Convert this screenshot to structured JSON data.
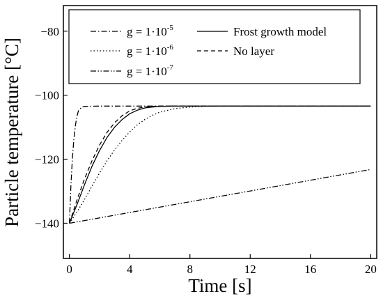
{
  "chart_data": {
    "type": "line",
    "xlabel": "Time [s]",
    "ylabel": "Particle temperature [°C]",
    "xlim": [
      -0.4,
      20.4
    ],
    "ylim": [
      -151,
      -72
    ],
    "xticks": [
      0,
      4,
      8,
      12,
      16,
      20
    ],
    "yticks": [
      -140,
      -120,
      -100,
      -80
    ],
    "grid": false,
    "legend_position": "top-left (boxed)",
    "series": [
      {
        "name": "g = 1·10",
        "name_exponent": "-5",
        "style": "dash-dot",
        "x": [
          0,
          0.1,
          0.2,
          0.3,
          0.4,
          0.5,
          0.6,
          0.8,
          1.0,
          2.0,
          20
        ],
        "y": [
          -140,
          -128.4,
          -119.6,
          -113.7,
          -109.4,
          -106.6,
          -104.9,
          -103.8,
          -103.5,
          -103.4,
          -103.4
        ]
      },
      {
        "name": "g = 1·10",
        "name_exponent": "-6",
        "style": "dotted",
        "x": [
          0,
          0.5,
          1,
          1.5,
          2,
          2.5,
          3,
          3.5,
          4,
          4.5,
          5,
          5.5,
          6,
          7,
          8,
          9,
          10,
          12,
          20
        ],
        "y": [
          -140,
          -136.5,
          -132.6,
          -128.4,
          -124.3,
          -120.5,
          -117.1,
          -114.1,
          -111.5,
          -109.3,
          -107.6,
          -106.3,
          -105.3,
          -104.2,
          -103.7,
          -103.5,
          -103.4,
          -103.4,
          -103.4
        ]
      },
      {
        "name": "g = 1·10",
        "name_exponent": "-7",
        "style": "dash-dot-dot",
        "x": [
          0,
          20
        ],
        "y": [
          -140,
          -123.2
        ]
      },
      {
        "name": "Frost growth model",
        "style": "solid",
        "x": [
          0,
          0.5,
          1,
          1.5,
          2,
          2.5,
          3,
          3.5,
          4,
          4.5,
          5,
          5.5,
          6,
          7,
          8,
          20
        ],
        "y": [
          -140,
          -134.2,
          -128.0,
          -122.2,
          -117.3,
          -113.2,
          -110.0,
          -107.6,
          -105.8,
          -104.7,
          -104.0,
          -103.7,
          -103.5,
          -103.4,
          -103.4,
          -103.4
        ]
      },
      {
        "name": "No layer",
        "style": "dashed",
        "x": [
          0,
          0.5,
          1,
          1.5,
          2,
          2.5,
          3,
          3.5,
          4,
          4.5,
          5,
          5.5,
          6,
          7,
          20
        ],
        "y": [
          -140,
          -132.8,
          -126.2,
          -120.5,
          -115.6,
          -111.6,
          -108.6,
          -106.4,
          -104.9,
          -104.1,
          -103.7,
          -103.5,
          -103.4,
          -103.4,
          -103.4
        ]
      }
    ]
  }
}
